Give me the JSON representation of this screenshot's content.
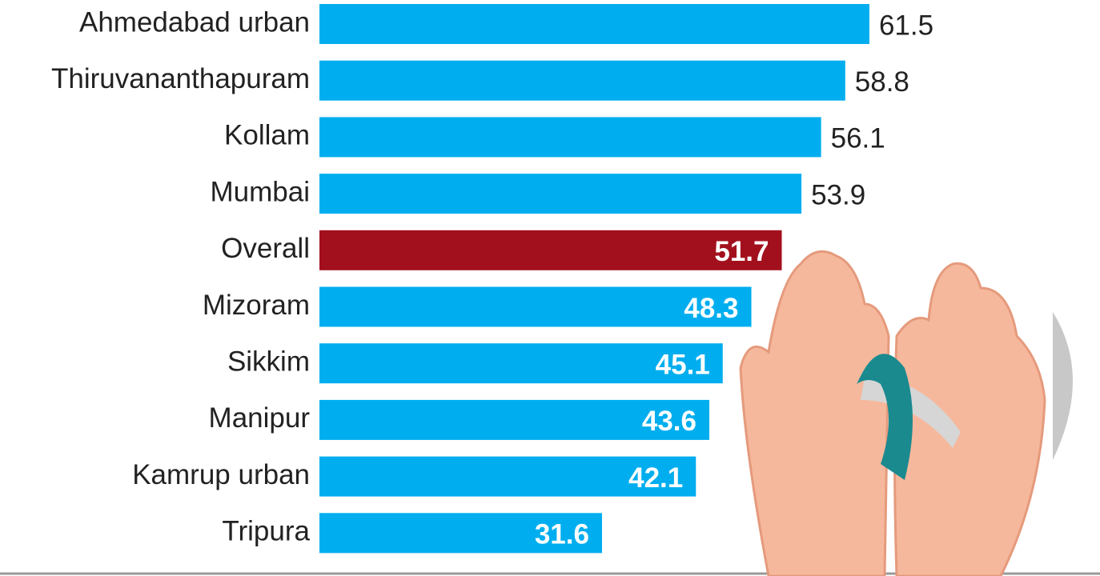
{
  "chart_data": {
    "type": "bar",
    "orientation": "horizontal",
    "categories": [
      "Ahmedabad urban",
      "Thiruvananthapuram",
      "Kollam",
      "Mumbai",
      "Overall",
      "Mizoram",
      "Sikkim",
      "Manipur",
      "Kamrup urban",
      "Tripura"
    ],
    "values": [
      61.5,
      58.8,
      56.1,
      53.9,
      51.7,
      48.3,
      45.1,
      43.6,
      42.1,
      31.6
    ],
    "colors": [
      "#00aeef",
      "#00aeef",
      "#00aeef",
      "#00aeef",
      "#a3101d",
      "#00aeef",
      "#00aeef",
      "#00aeef",
      "#00aeef",
      "#00aeef"
    ]
  }
}
